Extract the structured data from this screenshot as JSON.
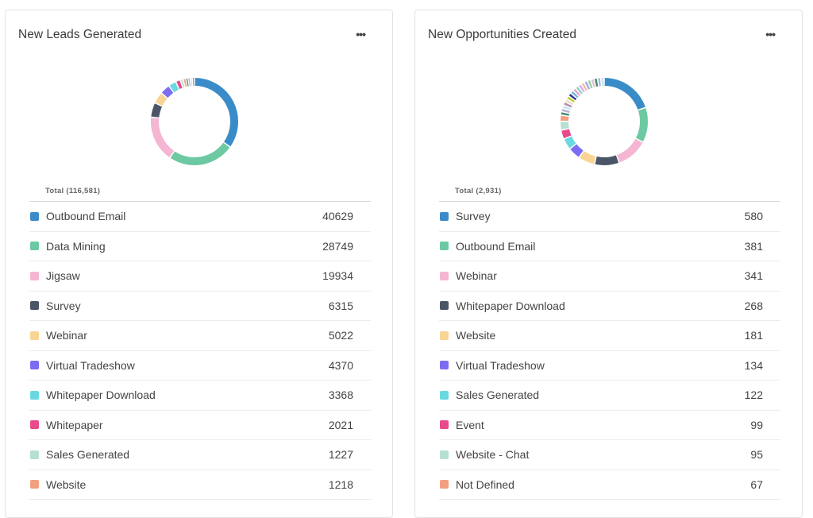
{
  "panels": [
    {
      "title": "New Leads Generated",
      "menu_icon": "more-horizontal-icon",
      "menu_label": "•••",
      "total_label": "Total (116,581)",
      "total": 116581,
      "items": [
        {
          "label": "Outbound Email",
          "value": "40629",
          "color": "#3a8cc8"
        },
        {
          "label": "Data Mining",
          "value": "28749",
          "color": "#6cc9a1"
        },
        {
          "label": "Jigsaw",
          "value": "19934",
          "color": "#f4b6d2"
        },
        {
          "label": "Survey",
          "value": "6315",
          "color": "#4a5568"
        },
        {
          "label": "Webinar",
          "value": "5022",
          "color": "#f8d594"
        },
        {
          "label": "Virtual Tradeshow",
          "value": "4370",
          "color": "#7b6cf2"
        },
        {
          "label": "Whitepaper Download",
          "value": "3368",
          "color": "#6ad8e0"
        },
        {
          "label": "Whitepaper",
          "value": "2021",
          "color": "#e84a8a"
        },
        {
          "label": "Sales Generated",
          "value": "1227",
          "color": "#b6e0d2"
        },
        {
          "label": "Website",
          "value": "1218",
          "color": "#f2a07f"
        }
      ]
    },
    {
      "title": "New Opportunities Created",
      "menu_icon": "more-horizontal-icon",
      "menu_label": "•••",
      "total_label": "Total (2,931)",
      "total": 2931,
      "items": [
        {
          "label": "Survey",
          "value": "580",
          "color": "#3a8cc8"
        },
        {
          "label": "Outbound Email",
          "value": "381",
          "color": "#6cc9a1"
        },
        {
          "label": "Webinar",
          "value": "341",
          "color": "#f4b6d2"
        },
        {
          "label": "Whitepaper Download",
          "value": "268",
          "color": "#4a5568"
        },
        {
          "label": "Website",
          "value": "181",
          "color": "#f8d594"
        },
        {
          "label": "Virtual Tradeshow",
          "value": "134",
          "color": "#7b6cf2"
        },
        {
          "label": "Sales Generated",
          "value": "122",
          "color": "#6ad8e0"
        },
        {
          "label": "Event",
          "value": "99",
          "color": "#e84a8a"
        },
        {
          "label": "Website - Chat",
          "value": "95",
          "color": "#b6e0d2"
        },
        {
          "label": "Not Defined",
          "value": "67",
          "color": "#f2a07f"
        }
      ]
    }
  ]
}
